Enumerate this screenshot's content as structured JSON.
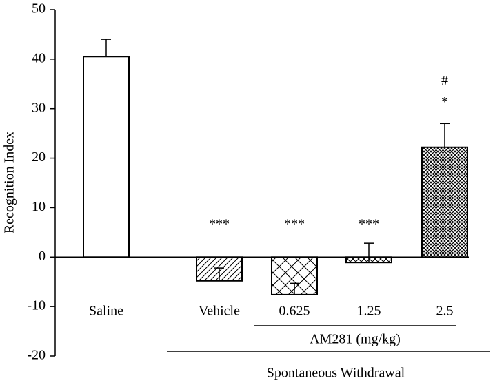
{
  "chart_data": {
    "type": "bar",
    "y_label": "Recognition Index",
    "categories": [
      "Saline",
      "Vehicle",
      "0.625",
      "1.25",
      "2.5"
    ],
    "values": [
      40.5,
      -4.8,
      -7.6,
      -1.1,
      22.2
    ],
    "errors": [
      3.5,
      2.6,
      2.3,
      3.9,
      4.8
    ],
    "annotations": [
      null,
      [
        "***"
      ],
      [
        "***"
      ],
      [
        "***"
      ],
      [
        "#",
        "*"
      ]
    ],
    "x_groups": [
      "AM281 (mg/kg)",
      "Spontaneous Withdrawal"
    ],
    "color": "#000000",
    "ylim": [
      -20,
      50
    ],
    "yticks": [
      -20,
      -10,
      0,
      10,
      20,
      30,
      40,
      50
    ],
    "grid": false
  }
}
